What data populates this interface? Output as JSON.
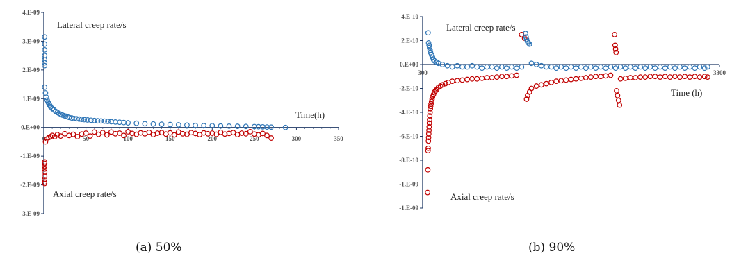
{
  "chart_data": [
    {
      "type": "scatter",
      "caption": "(a) 50%",
      "xlim": [
        0,
        350
      ],
      "ylim": [
        -3e-09,
        4e-09
      ],
      "x_ticks": [
        0,
        50,
        100,
        150,
        200,
        250,
        300,
        350
      ],
      "x_tick_labels": [
        "0",
        "50",
        "100",
        "150",
        "200",
        "250",
        "300",
        "350"
      ],
      "y_ticks": [
        4e-09,
        3e-09,
        2e-09,
        1e-09,
        0,
        -1e-09,
        -2e-09,
        -3e-09
      ],
      "y_tick_labels": [
        "4.E-09",
        "3.E-09",
        "2.E-09",
        "1.E-09",
        "0.E+00",
        "-1.E-09",
        "-2.E-09",
        "-3.E-09"
      ],
      "annotations": {
        "lateral": "Lateral creep rate/s",
        "axial": "Axial creep rate/s",
        "time": "Time(h)"
      },
      "grid": false,
      "series": [
        {
          "name": "Lateral creep rate/s",
          "color": "#2E75B6",
          "x": [
            1,
            1,
            1,
            1,
            1,
            1,
            1,
            1,
            2,
            3,
            4,
            5,
            6,
            7,
            8,
            10,
            12,
            14,
            16,
            18,
            20,
            22,
            24,
            26,
            28,
            30,
            33,
            36,
            39,
            42,
            45,
            48,
            52,
            56,
            60,
            64,
            68,
            72,
            76,
            80,
            85,
            90,
            95,
            100,
            110,
            120,
            130,
            140,
            150,
            160,
            170,
            180,
            190,
            200,
            210,
            220,
            230,
            240,
            250,
            255,
            260,
            265,
            270,
            287
          ],
          "y": [
            3.15e-09,
            2.9e-09,
            2.7e-09,
            2.5e-09,
            2.35e-09,
            2.25e-09,
            2.15e-09,
            1.4e-09,
            1.2e-09,
            1.05e-09,
            9.5e-10,
            8.8e-10,
            8.2e-10,
            7.7e-10,
            7.2e-10,
            6.6e-10,
            6.1e-10,
            5.6e-10,
            5.2e-10,
            4.9e-10,
            4.6e-10,
            4.3e-10,
            4.1e-10,
            3.9e-10,
            3.7e-10,
            3.5e-10,
            3.3e-10,
            3.1e-10,
            3e-10,
            2.9e-10,
            2.8e-10,
            2.7e-10,
            2.6e-10,
            2.5e-10,
            2.4e-10,
            2.3e-10,
            2.25e-10,
            2.2e-10,
            2.1e-10,
            2e-10,
            1.9e-10,
            1.8e-10,
            1.7e-10,
            1.6e-10,
            1.45e-10,
            1.3e-10,
            1.2e-10,
            1.1e-10,
            1e-10,
            9e-11,
            8e-11,
            7e-11,
            6.5e-11,
            6e-11,
            5e-11,
            4.5e-11,
            4e-11,
            3.5e-11,
            3e-11,
            2.5e-11,
            2e-11,
            1.5e-11,
            1e-11,
            0
          ]
        },
        {
          "name": "Axial creep rate/s",
          "color": "#C00000",
          "x": [
            1,
            1,
            1,
            1,
            1,
            1,
            1,
            1,
            1,
            2,
            4,
            6,
            8,
            10,
            13,
            16,
            20,
            25,
            30,
            35,
            40,
            45,
            50,
            55,
            60,
            65,
            70,
            75,
            80,
            85,
            90,
            95,
            100,
            105,
            110,
            115,
            120,
            125,
            130,
            135,
            140,
            145,
            150,
            155,
            160,
            165,
            170,
            175,
            180,
            185,
            190,
            195,
            200,
            205,
            210,
            215,
            220,
            225,
            230,
            235,
            240,
            245,
            250,
            255,
            260,
            265,
            270
          ],
          "y": [
            -1.9e-09,
            -1.82e-09,
            -1.7e-09,
            -1.55e-09,
            -1.45e-09,
            -1.35e-09,
            -1.25e-09,
            -1.2e-09,
            -1.95e-09,
            -5e-10,
            -4e-10,
            -3.5e-10,
            -3.2e-10,
            -2.8e-10,
            -3.2e-10,
            -2.5e-10,
            -3e-10,
            -2.2e-10,
            -2.8e-10,
            -2.4e-10,
            -3.2e-10,
            -2.3e-10,
            -2e-10,
            -3e-10,
            -1.6e-10,
            -2.4e-10,
            -1.8e-10,
            -2.6e-10,
            -1.6e-10,
            -2.2e-10,
            -2e-10,
            -2.8e-10,
            -1.5e-10,
            -2.1e-10,
            -2.4e-10,
            -1.9e-10,
            -2.2e-10,
            -1.7e-10,
            -2.5e-10,
            -2e-10,
            -1.8e-10,
            -2.3e-10,
            -1.9e-10,
            -2.6e-10,
            -1.6e-10,
            -2.2e-10,
            -2.4e-10,
            -1.8e-10,
            -2.1e-10,
            -2.5e-10,
            -1.9e-10,
            -2.2e-10,
            -2e-10,
            -2.4e-10,
            -1.7e-10,
            -2.3e-10,
            -2.1e-10,
            -1.8e-10,
            -2.5e-10,
            -2e-10,
            -2.2e-10,
            -1.5e-10,
            -2.3e-10,
            -2.6e-10,
            -2.1e-10,
            -2.8e-10,
            -3.7e-10
          ]
        }
      ]
    },
    {
      "type": "scatter",
      "caption": "(b) 90%",
      "xlim": [
        300,
        3300
      ],
      "ylim": [
        -1.2e-09,
        4e-10
      ],
      "x_ticks": [
        300,
        3300
      ],
      "x_tick_labels": [
        "300",
        "3300"
      ],
      "y_ticks": [
        4e-10,
        2e-10,
        0,
        -2e-10,
        -4e-10,
        -6e-10,
        -8e-10,
        -1e-09,
        -1.2e-09
      ],
      "y_tick_labels": [
        "4.E-10",
        "2.E-10",
        "0.E+00",
        "-2.E-10",
        "-4.E-10",
        "-6.E-10",
        "-8.E-10",
        "-1.E-09",
        "-1.E-09"
      ],
      "annotations": {
        "lateral": "Lateral creep rate/s",
        "axial": "Axial creep rate/s",
        "time": "Time (h)"
      },
      "grid": false,
      "series": [
        {
          "name": "Lateral creep rate/s",
          "color": "#2E75B6",
          "x": [
            355,
            360,
            365,
            370,
            375,
            380,
            390,
            400,
            410,
            420,
            440,
            460,
            500,
            550,
            600,
            650,
            700,
            750,
            800,
            850,
            900,
            950,
            1000,
            1050,
            1100,
            1150,
            1200,
            1250,
            1300,
            1340,
            1345,
            1350,
            1360,
            1370,
            1380,
            1400,
            1450,
            1500,
            1550,
            1600,
            1650,
            1700,
            1750,
            1800,
            1850,
            1900,
            1950,
            2000,
            2050,
            2100,
            2150,
            2200,
            2250,
            2300,
            2350,
            2400,
            2450,
            2500,
            2550,
            2600,
            2650,
            2700,
            2750,
            2800,
            2850,
            2900,
            2950,
            3000,
            3050,
            3100,
            3150,
            3180
          ],
          "y": [
            2.65e-10,
            1.8e-10,
            1.6e-10,
            1.4e-10,
            1.2e-10,
            1e-10,
            8e-11,
            6e-11,
            4e-11,
            3e-11,
            2e-11,
            1e-11,
            0,
            -1e-11,
            -2e-11,
            -1e-11,
            -2e-11,
            -2e-11,
            -1e-11,
            -2e-11,
            -3e-11,
            -2e-11,
            -2e-11,
            -3e-11,
            -2e-11,
            -3e-11,
            -2e-11,
            -3e-11,
            -2e-11,
            2.6e-10,
            2.3e-10,
            2.1e-10,
            1.9e-10,
            1.8e-10,
            1.7e-10,
            1e-11,
            0,
            -1e-11,
            -2e-11,
            -2e-11,
            -3e-11,
            -2e-11,
            -3e-11,
            -2e-11,
            -3e-11,
            -2e-11,
            -3e-11,
            -2e-11,
            -3e-11,
            -2e-11,
            -3e-11,
            -2e-11,
            -3e-11,
            -2e-11,
            -3e-11,
            -2e-11,
            -3e-11,
            -2e-11,
            -3e-11,
            -2e-11,
            -3e-11,
            -2e-11,
            -3e-11,
            -2e-11,
            -3e-11,
            -2e-11,
            -3e-11,
            -2e-11,
            -3e-11,
            -2e-11,
            -3e-11,
            -2e-11
          ]
        },
        {
          "name": "Axial creep rate/s",
          "color": "#C00000",
          "x": [
            350,
            352,
            354,
            356,
            358,
            360,
            362,
            364,
            366,
            368,
            370,
            372,
            375,
            378,
            381,
            385,
            390,
            395,
            400,
            410,
            420,
            430,
            440,
            460,
            480,
            500,
            530,
            560,
            600,
            650,
            700,
            750,
            800,
            850,
            900,
            950,
            1000,
            1050,
            1100,
            1150,
            1200,
            1250,
            1300,
            1330,
            1350,
            1360,
            1380,
            1400,
            1450,
            1500,
            1550,
            1600,
            1650,
            1700,
            1750,
            1800,
            1850,
            1900,
            1950,
            2000,
            2050,
            2100,
            2150,
            2200,
            2240,
            2245,
            2250,
            2255,
            2260,
            2270,
            2280,
            2290,
            2300,
            2350,
            2400,
            2450,
            2500,
            2550,
            2600,
            2650,
            2700,
            2750,
            2800,
            2850,
            2900,
            2950,
            3000,
            3050,
            3100,
            3150,
            3180
          ],
          "y": [
            -1.07e-09,
            -8.8e-10,
            -7.2e-10,
            -7e-10,
            -6.4e-10,
            -6.1e-10,
            -5.8e-10,
            -5.5e-10,
            -5.2e-10,
            -4.9e-10,
            -4.6e-10,
            -4.3e-10,
            -4e-10,
            -3.7e-10,
            -3.5e-10,
            -3.3e-10,
            -3.1e-10,
            -2.9e-10,
            -2.7e-10,
            -2.5e-10,
            -2.3e-10,
            -2.2e-10,
            -2.1e-10,
            -1.9e-10,
            -1.8e-10,
            -1.7e-10,
            -1.6e-10,
            -1.5e-10,
            -1.4e-10,
            -1.35e-10,
            -1.3e-10,
            -1.25e-10,
            -1.2e-10,
            -1.2e-10,
            -1.15e-10,
            -1.1e-10,
            -1.1e-10,
            -1.05e-10,
            -1e-10,
            -1e-10,
            -9.5e-11,
            -9e-11,
            2.5e-10,
            2.2e-10,
            -2.9e-10,
            -2.6e-10,
            -2.3e-10,
            -2e-10,
            -1.8e-10,
            -1.7e-10,
            -1.6e-10,
            -1.5e-10,
            -1.4e-10,
            -1.35e-10,
            -1.3e-10,
            -1.25e-10,
            -1.2e-10,
            -1.15e-10,
            -1.1e-10,
            -1.05e-10,
            -1e-10,
            -1e-10,
            -9.5e-11,
            -9e-11,
            2.5e-10,
            1.6e-10,
            1.3e-10,
            1e-10,
            -2.2e-10,
            -2.6e-10,
            -3e-10,
            -3.4e-10,
            -1.2e-10,
            -1.15e-10,
            -1.1e-10,
            -1.1e-10,
            -1.05e-10,
            -1.05e-10,
            -1e-10,
            -1e-10,
            -1.05e-10,
            -1e-10,
            -1.05e-10,
            -1e-10,
            -1.05e-10,
            -1e-10,
            -1.05e-10,
            -1e-10,
            -1.05e-10,
            -1e-10,
            -1.05e-10
          ]
        }
      ]
    }
  ]
}
